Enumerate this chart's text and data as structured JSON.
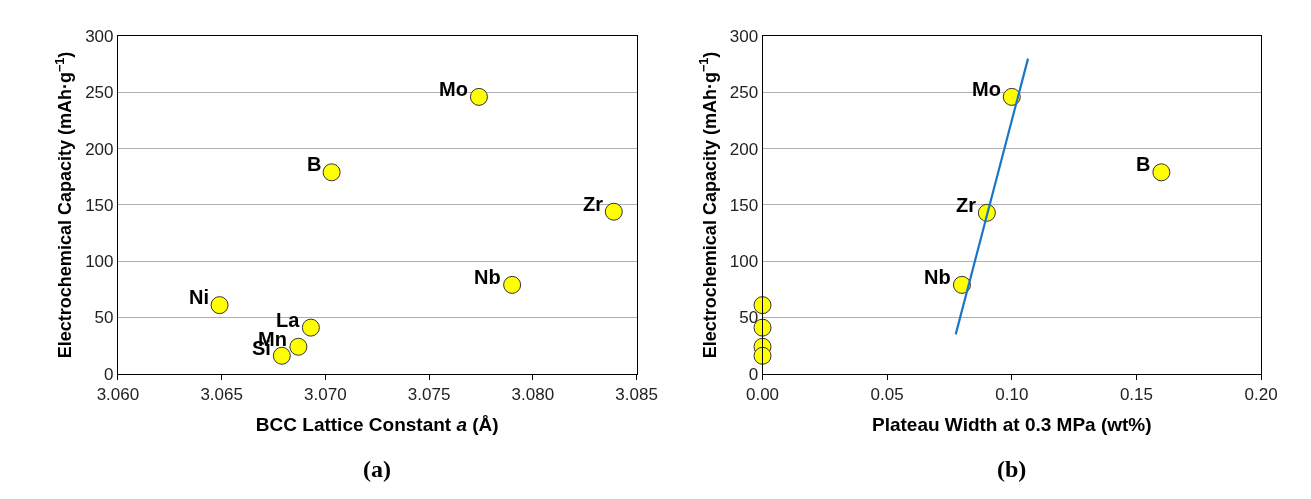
{
  "chart_data": [
    {
      "type": "scatter",
      "title": "(a)",
      "xlabel": "BCC Lattice Constant $_{}$a (Å)",
      "ylabel": "Electrochemical Capacity (mAh·g$^{−1}$)",
      "series": [
        {
          "color": "#ffff00",
          "x": [
            3.0649,
            3.0693,
            3.0687,
            3.0679,
            3.0703,
            3.0774,
            3.079,
            3.0839
          ],
          "values": [
            61,
            41,
            24,
            16,
            179,
            246,
            79,
            144
          ]
        }
      ],
      "annotations": [
        {
          "text": "Ni",
          "x": 3.0649,
          "y": 61
        },
        {
          "text": "La",
          "x": 3.0693,
          "y": 41
        },
        {
          "text": "Mn",
          "x": 3.0687,
          "y": 24
        },
        {
          "text": "Si",
          "x": 3.0679,
          "y": 16
        },
        {
          "text": "B",
          "x": 3.0703,
          "y": 179
        },
        {
          "text": "Mo",
          "x": 3.0774,
          "y": 246
        },
        {
          "text": "Nb",
          "x": 3.079,
          "y": 79
        },
        {
          "text": "Zr",
          "x": 3.0839,
          "y": 144
        }
      ],
      "xlim": [
        3.06,
        3.085
      ],
      "xticks": [
        {
          "value": 3.06,
          "label": "3.060"
        },
        {
          "value": 3.065,
          "label": "3.065"
        },
        {
          "value": 3.07,
          "label": "3.070"
        },
        {
          "value": 3.075,
          "label": "3.075"
        },
        {
          "value": 3.08,
          "label": "3.080"
        },
        {
          "value": 3.085,
          "label": "3.085"
        }
      ],
      "ylim": [
        0,
        300
      ],
      "yticks": [
        0,
        50,
        100,
        150,
        200,
        250,
        300
      ],
      "grid": "y",
      "marker": "circle"
    },
    {
      "type": "scatter",
      "title": "(b)",
      "xlabel": "Plateau Width at 0.3 MPa (wt%)",
      "ylabel": "Electrochemical Capacity (mAh·g$^{−1}$)",
      "series": [
        {
          "color": "#ffff00",
          "x": [
            0,
            0,
            0,
            0,
            0.16,
            0.1,
            0.08,
            0.09
          ],
          "values": [
            61,
            41,
            24,
            16,
            179,
            246,
            79,
            143
          ]
        },
        {
          "type": "line",
          "color": "#1a75c9",
          "x": [
            0.0775,
            0.1065
          ],
          "values": [
            35,
            280
          ],
          "line_style": "solid",
          "marker": "none"
        }
      ],
      "annotations": [
        {
          "text": "B",
          "x": 0.16,
          "y": 179
        },
        {
          "text": "Mo",
          "x": 0.1,
          "y": 246
        },
        {
          "text": "Nb",
          "x": 0.08,
          "y": 79
        },
        {
          "text": "Zr",
          "x": 0.09,
          "y": 143
        }
      ],
      "xlim": [
        0,
        0.2
      ],
      "xticks": [
        {
          "value": 0,
          "label": "0.00"
        },
        {
          "value": 0.05,
          "label": "0.05"
        },
        {
          "value": 0.1,
          "label": "0.10"
        },
        {
          "value": 0.15,
          "label": "0.15"
        },
        {
          "value": 0.2,
          "label": "0.20"
        }
      ],
      "ylim": [
        0,
        300
      ],
      "yticks": [
        0,
        50,
        100,
        150,
        200,
        250,
        300
      ],
      "grid": "y",
      "marker": "circle"
    }
  ]
}
